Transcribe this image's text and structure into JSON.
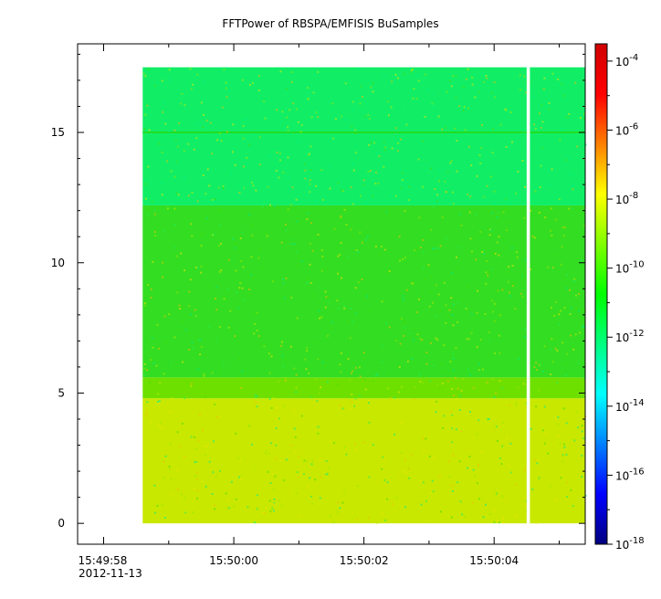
{
  "chart_data": {
    "type": "heatmap",
    "title": "FFTPower of RBSPA/EMFISIS  BuSamples",
    "xlabel": "",
    "ylabel": "",
    "x_axis": {
      "kind": "time",
      "date_label": "2012-11-13",
      "range": [
        "15:49:57.6",
        "15:50:05.4"
      ],
      "tick_labels": [
        "15:49:58",
        "15:50:00",
        "15:50:02",
        "15:50:04"
      ],
      "tick_values_s": [
        58,
        60,
        62,
        64
      ]
    },
    "y_axis": {
      "range": [
        -0.8,
        18.4
      ],
      "tick_labels": [
        "0",
        "5",
        "10",
        "15"
      ],
      "tick_values": [
        0,
        5,
        10,
        15
      ]
    },
    "colorbar": {
      "scale": "log",
      "range_exp": [
        -18,
        -3.5
      ],
      "tick_exponents": [
        -18,
        -16,
        -14,
        -12,
        -10,
        -8,
        -6,
        -4
      ],
      "base_label": "10",
      "colors": [
        "#00007f",
        "#0000ff",
        "#0080ff",
        "#00ffff",
        "#00ff80",
        "#00ff00",
        "#80ff00",
        "#ffff00",
        "#ff8000",
        "#ff0000",
        "#d00000"
      ]
    },
    "data_start_s": 58.6,
    "data_end_s": 65.4,
    "data_gap_s": [
      64.5,
      64.55
    ],
    "freq_max": 17.5,
    "bands": [
      {
        "y_from": 0,
        "y_to": 4.8,
        "log_power": -8.7,
        "color": "#c8e800"
      },
      {
        "y_from": 4.8,
        "y_to": 5.6,
        "log_power": -9.8,
        "color": "#6ee000"
      },
      {
        "y_from": 5.6,
        "y_to": 12.2,
        "log_power": -10.3,
        "color": "#33dd22"
      },
      {
        "y_from": 12.2,
        "y_to": 17.5,
        "log_power": -11.2,
        "color": "#11ee66"
      }
    ],
    "line_feature": {
      "y": 15,
      "color": "#22dd22"
    }
  }
}
